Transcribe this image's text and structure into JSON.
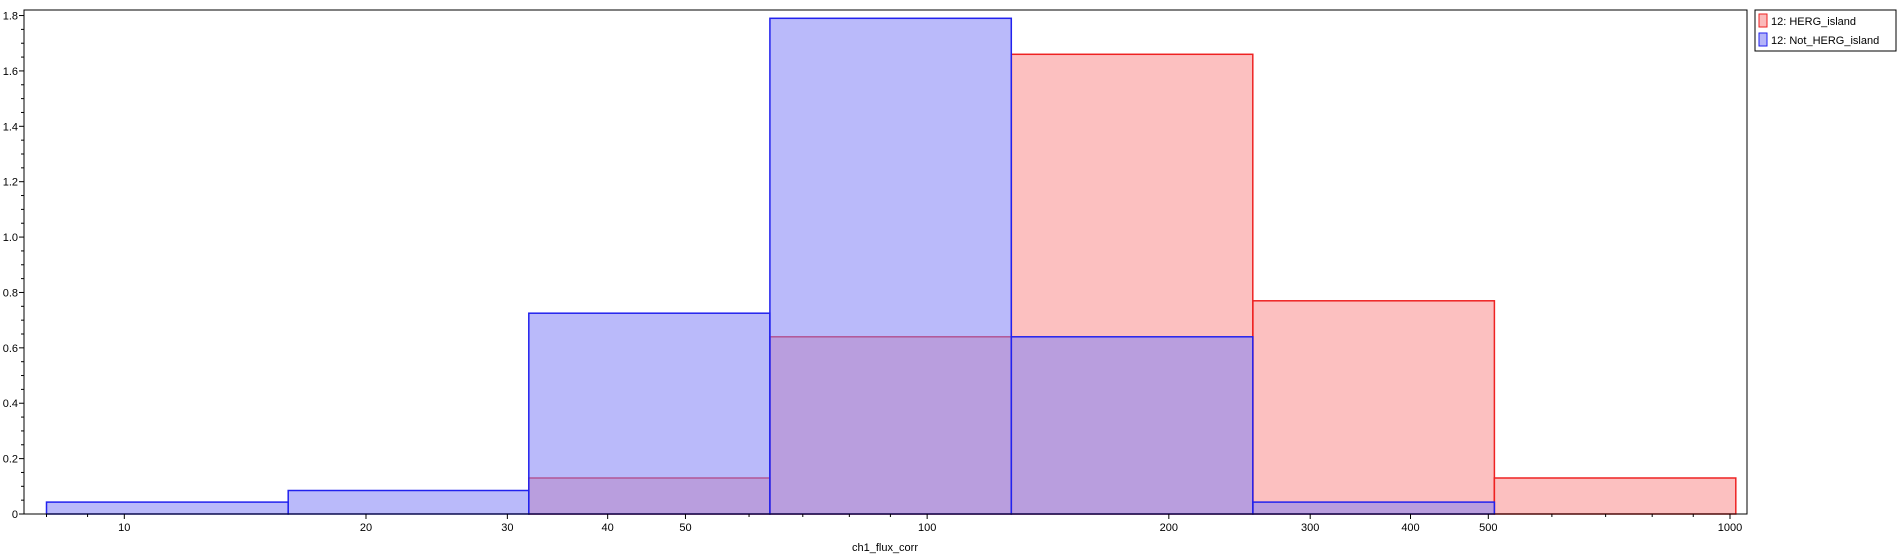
{
  "chart_data": {
    "type": "histogram",
    "title": "",
    "xlabel": "ch1_flux_corr",
    "ylabel": "",
    "x_scale": "log",
    "xlim": [
      7.5,
      1050
    ],
    "ylim": [
      0,
      1.82
    ],
    "x_ticks": [
      10,
      20,
      30,
      40,
      50,
      100,
      200,
      300,
      400,
      500,
      1000
    ],
    "y_ticks": [
      0,
      0.2,
      0.4,
      0.6,
      0.8,
      1.0,
      1.2,
      1.4,
      1.6,
      1.8
    ],
    "y_tick_labels": [
      "0",
      "0.2",
      "0.4",
      "0.6",
      "0.8",
      "1.0",
      "1.2",
      "1.4",
      "1.6",
      "1.8"
    ],
    "legend_position": "outside-top-right",
    "grid": false,
    "series": [
      {
        "name": "12: HERG_island",
        "fill": "#f98c8c",
        "stroke": "#ee2222",
        "bins": [
          {
            "x0": 31.9,
            "x1": 63.7,
            "y": 0.13
          },
          {
            "x0": 63.7,
            "x1": 127.3,
            "y": 0.64
          },
          {
            "x0": 127.3,
            "x1": 254.5,
            "y": 1.66
          },
          {
            "x0": 254.5,
            "x1": 508.7,
            "y": 0.77
          },
          {
            "x0": 508.7,
            "x1": 1016.8,
            "y": 0.13
          }
        ]
      },
      {
        "name": "12: Not_HERG_island",
        "fill": "#8282f5",
        "stroke": "#2222ee",
        "bins": [
          {
            "x0": 8.0,
            "x1": 16.0,
            "y": 0.043
          },
          {
            "x0": 16.0,
            "x1": 31.9,
            "y": 0.085
          },
          {
            "x0": 31.9,
            "x1": 63.7,
            "y": 0.725
          },
          {
            "x0": 63.7,
            "x1": 127.3,
            "y": 1.79
          },
          {
            "x0": 127.3,
            "x1": 254.5,
            "y": 0.64
          },
          {
            "x0": 254.5,
            "x1": 508.7,
            "y": 0.043
          }
        ]
      }
    ]
  }
}
